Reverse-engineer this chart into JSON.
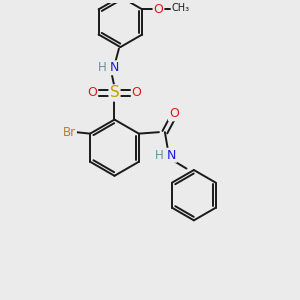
{
  "bg_color": "#ebebeb",
  "bond_color": "#1a1a1a",
  "bond_width": 1.4,
  "atom_colors": {
    "C": "#1a1a1a",
    "H": "#5a9a9a",
    "N": "#1a1ae0",
    "O": "#e01a1a",
    "S": "#c8a000",
    "Br": "#c87820"
  },
  "figsize": [
    3.0,
    3.0
  ],
  "dpi": 100
}
